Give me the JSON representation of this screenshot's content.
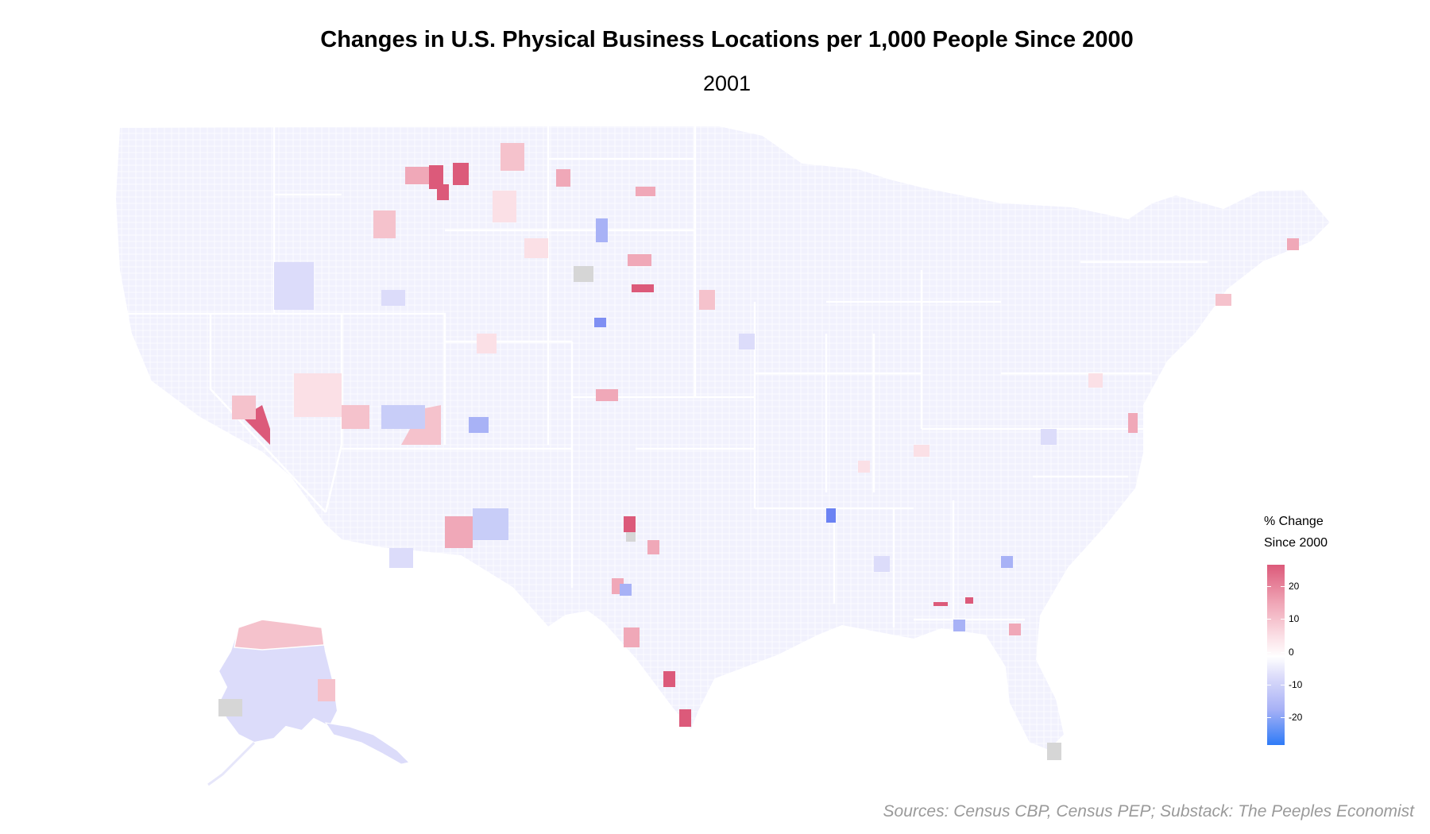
{
  "title": "Changes in U.S. Physical Business Locations per 1,000 People Since 2000",
  "subtitle": "2001",
  "legend": {
    "title_line1": "% Change",
    "title_line2": "Since 2000",
    "ticks": [
      "20",
      "10",
      "0",
      "-10",
      "-20"
    ],
    "tick_values": [
      20,
      10,
      0,
      -10,
      -20
    ],
    "color_high": "#dc5a7a",
    "color_mid": "#ffffff",
    "color_low": "#2f7bf7",
    "color_missing": "#d6d6d6"
  },
  "source": "Sources: Census CBP, Census PEP; Substack: The Peeples Economist"
}
